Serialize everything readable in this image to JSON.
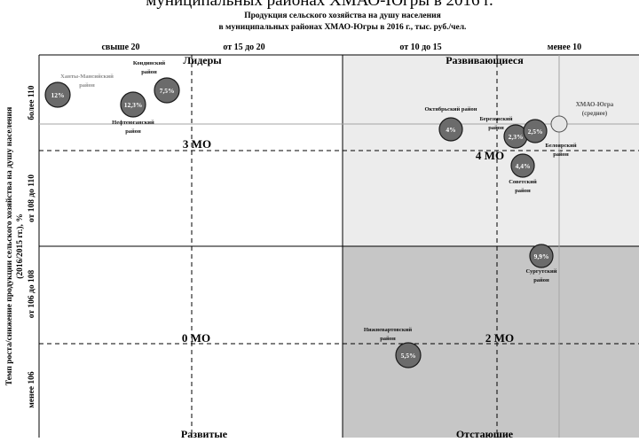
{
  "chart_data": {
    "type": "scatter",
    "cut_heading": "муниципальных районах ХМАО-Югры в 2016 г.",
    "title_line1": "Продукция сельского хозяйства на душу населения",
    "title_line2": "в муниципальных районах ХМАО-Югры в 2016 г., тыс. руб./чел.",
    "ylabel_line1": "Темп роста/снижение продукции сельского хозяйства на душу населения",
    "ylabel_line2": "(2016/2015 гг.), %",
    "x_top_labels": [
      "свыше 20",
      "от 15 до 20",
      "от 10 до 15",
      "менее 10"
    ],
    "y_left_labels": [
      "более 110",
      "от 108 до 110",
      "от 106 до 108",
      "менее 106"
    ],
    "quadrants": {
      "top_left_name": "Лидеры",
      "top_right_name": "Развивающиеся",
      "bottom_left_name": "Развитые",
      "bottom_right_name": "Отстающие",
      "top_left_count": "3 МО",
      "top_right_count": "4 МО",
      "bottom_left_count": "0 МО",
      "bottom_right_count": "2 МО"
    },
    "average": {
      "label_line1": "ХМАО-Югра",
      "label_line2": "(среднее)"
    },
    "points": [
      {
        "id": "hm",
        "bubble_label": "12%",
        "name_line1": "Ханты-Мансийский",
        "name_line2": "район",
        "name_gray": true
      },
      {
        "id": "nf",
        "bubble_label": "12,3%",
        "name_line1": "Нефтеюганский",
        "name_line2": "район",
        "name_gray": false
      },
      {
        "id": "kd",
        "bubble_label": "7,5%",
        "name_line1": "Кондинский",
        "name_line2": "район",
        "name_gray": false
      },
      {
        "id": "ok",
        "bubble_label": "4%",
        "name_line1": "Октябрьский район",
        "name_line2": "",
        "name_gray": false
      },
      {
        "id": "br",
        "bubble_label": "2,3%",
        "name_line1": "Березовский",
        "name_line2": "район",
        "name_gray": false
      },
      {
        "id": "bl",
        "bubble_label": "2,5%",
        "name_line1": "Белоярский",
        "name_line2": "район",
        "name_gray": false
      },
      {
        "id": "sv",
        "bubble_label": "4,4%",
        "name_line1": "Советский",
        "name_line2": "район",
        "name_gray": false
      },
      {
        "id": "sg",
        "bubble_label": "9,9%",
        "name_line1": "Сургутский",
        "name_line2": "район",
        "name_gray": false
      },
      {
        "id": "nv",
        "bubble_label": "5,5%",
        "name_line1": "Нижневартовский",
        "name_line2": "район",
        "name_gray": false
      }
    ],
    "colors": {
      "bubble_fill": "#6b6b6b",
      "bubble_stroke": "#1a1a1a",
      "average_fill": "#e6e6e6",
      "quadrant_top_right": "#ececec",
      "quadrant_bottom_right": "#c6c6c6",
      "gray_label": "#8c8c8c"
    }
  }
}
